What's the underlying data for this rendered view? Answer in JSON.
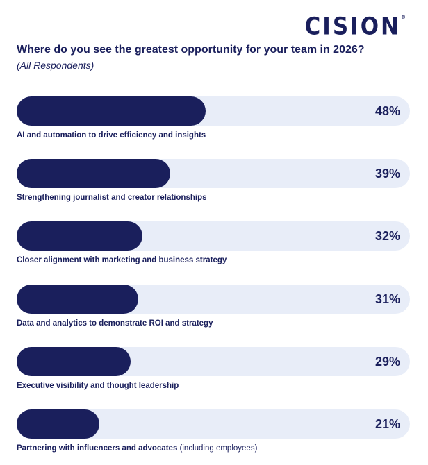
{
  "brand": {
    "logo_text": "CISION",
    "logo_mark": "®"
  },
  "colors": {
    "bar": "#1a1f5c",
    "track": "#e8edf8",
    "text": "#1a1f5c"
  },
  "chart_data": {
    "type": "bar",
    "orientation": "horizontal",
    "title": "Where do you see the greatest opportunity for your team in 2026?",
    "subtitle": "(All Respondents)",
    "xlim": [
      0,
      100
    ],
    "grid": false,
    "categories": [
      {
        "label": "AI and automation to drive efficiency and insights",
        "note": ""
      },
      {
        "label": "Strengthening journalist and creator relationships",
        "note": ""
      },
      {
        "label": "Closer alignment with marketing and business strategy",
        "note": ""
      },
      {
        "label": "Data and analytics to demonstrate ROI and strategy",
        "note": ""
      },
      {
        "label": "Executive visibility and thought leadership",
        "note": ""
      },
      {
        "label": "Partnering with influencers and advocates",
        "note": "(including employees)"
      }
    ],
    "values": [
      48,
      39,
      32,
      31,
      29,
      21
    ],
    "value_labels": [
      "48%",
      "39%",
      "32%",
      "31%",
      "29%",
      "21%"
    ]
  }
}
